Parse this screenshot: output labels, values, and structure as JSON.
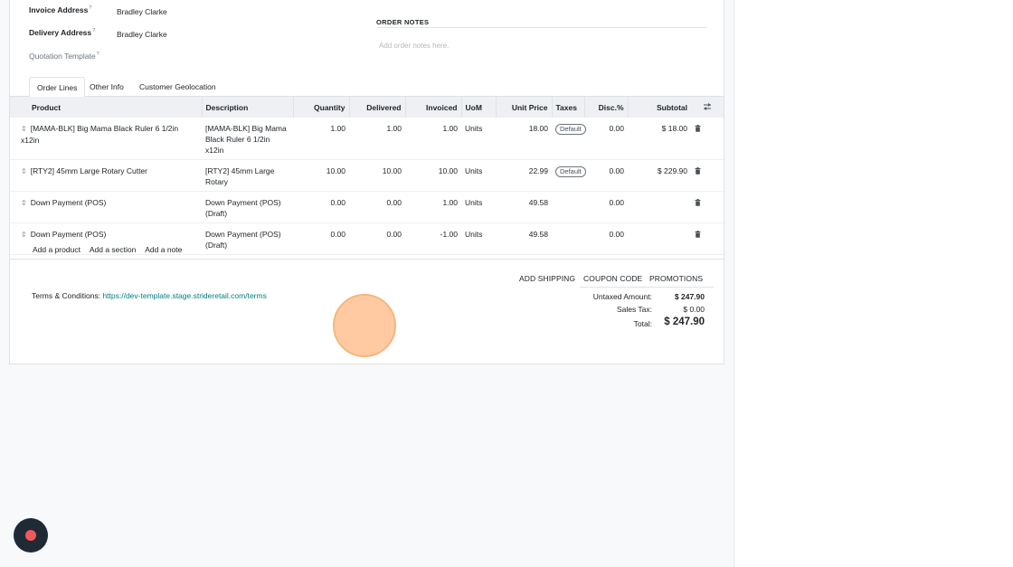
{
  "form": {
    "invoice_address_label": "Invoice Address",
    "invoice_address_value": "Bradley Clarke",
    "delivery_address_label": "Delivery Address",
    "delivery_address_value": "Bradley Clarke",
    "quotation_template_label": "Quotation Template",
    "help_mark": "?",
    "order_notes_title": "ORDER NOTES",
    "order_notes_placeholder": "Add order notes here."
  },
  "tabs": [
    {
      "label": "Order Lines",
      "active": true
    },
    {
      "label": "Other Info",
      "active": false
    },
    {
      "label": "Customer Geolocation",
      "active": false
    }
  ],
  "table": {
    "headers": {
      "product": "Product",
      "description": "Description",
      "quantity": "Quantity",
      "delivered": "Delivered",
      "invoiced": "Invoiced",
      "uom": "UoM",
      "unit_price": "Unit Price",
      "taxes": "Taxes",
      "disc": "Disc.%",
      "subtotal": "Subtotal"
    },
    "rows": [
      {
        "product": "[MAMA-BLK] Big Mama Black Ruler 6 1/2in x12in",
        "description": "[MAMA-BLK] Big Mama Black Ruler 6 1/2in x12in",
        "quantity": "1.00",
        "delivered": "1.00",
        "invoiced": "1.00",
        "uom": "Units",
        "unit_price": "18.00",
        "tax": "Default",
        "disc": "0.00",
        "subtotal": "$ 18.00"
      },
      {
        "product": "[RTY2] 45mm Large Rotary Cutter",
        "description": "[RTY2] 45mm Large Rotary",
        "quantity": "10.00",
        "delivered": "10.00",
        "invoiced": "10.00",
        "uom": "Units",
        "unit_price": "22.99",
        "tax": "Default",
        "disc": "0.00",
        "subtotal": "$ 229.90"
      },
      {
        "product": "Down Payment (POS)",
        "description": "Down Payment (POS) (Draft)",
        "quantity": "0.00",
        "delivered": "0.00",
        "invoiced": "1.00",
        "uom": "Units",
        "unit_price": "49.58",
        "tax": "",
        "disc": "0.00",
        "subtotal": ""
      },
      {
        "product": "Down Payment (POS)",
        "description": "Down Payment (POS) (Draft)",
        "quantity": "0.00",
        "delivered": "0.00",
        "invoiced": "-1.00",
        "uom": "Units",
        "unit_price": "49.58",
        "tax": "",
        "disc": "0.00",
        "subtotal": ""
      }
    ]
  },
  "add_links": {
    "add_product": "Add a product",
    "add_section": "Add a section",
    "add_note": "Add a note"
  },
  "actions": {
    "add_shipping": "ADD SHIPPING",
    "coupon_code": "COUPON CODE",
    "promotions": "PROMOTIONS"
  },
  "terms": {
    "label": "Terms & Conditions:",
    "url": "https://dev-template.stage.strideretail.com/terms"
  },
  "totals": {
    "untaxed_label": "Untaxed Amount:",
    "untaxed_value": "$ 247.90",
    "tax_label": "Sales Tax:",
    "tax_value": "$ 0.00",
    "total_label": "Total:",
    "total_value": "$ 247.90"
  },
  "icons": {
    "handle": "drag-handle-icon",
    "trash": "trash-icon",
    "column_settings": "column-settings-icon",
    "record": "record-icon"
  },
  "colors": {
    "link": "#017e84",
    "record_dot": "#ef5a5a",
    "record_bg": "#1f2a36"
  }
}
